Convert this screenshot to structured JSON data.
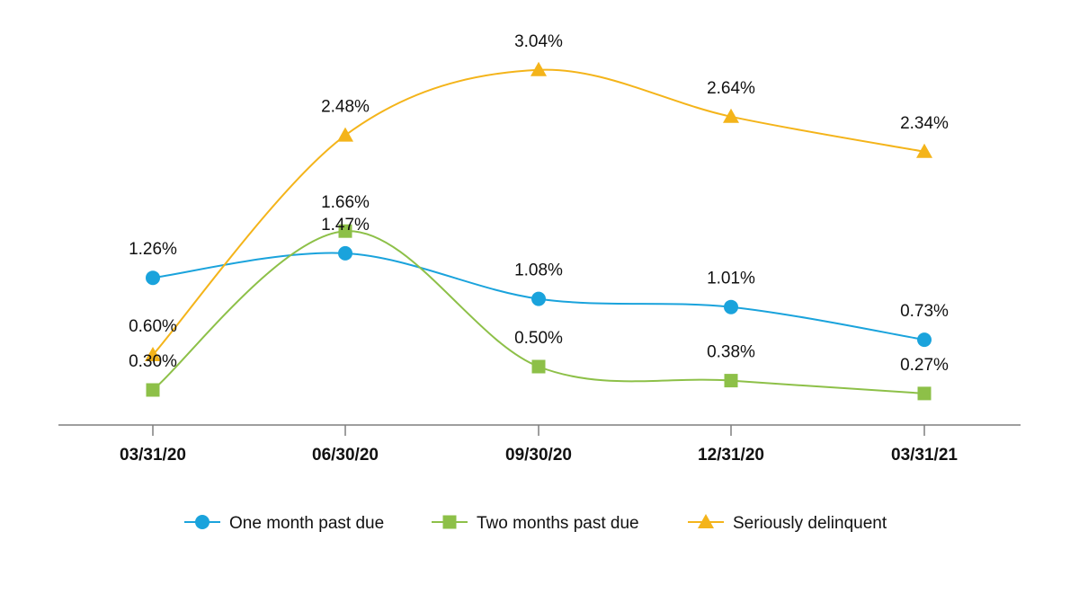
{
  "chart_data": {
    "type": "line",
    "categories": [
      "03/31/20",
      "06/30/20",
      "09/30/20",
      "12/31/20",
      "03/31/21"
    ],
    "ylim": [
      0,
      3.4
    ],
    "grid": false,
    "legend_position": "bottom",
    "series": [
      {
        "name": "One month past due",
        "marker": "circle",
        "color": "#1aa3dc",
        "values": [
          1.26,
          1.47,
          1.08,
          1.01,
          0.73
        ],
        "labels": [
          "1.26%",
          "1.47%",
          "1.08%",
          "1.01%",
          "0.73%"
        ]
      },
      {
        "name": "Two months past due",
        "marker": "square",
        "color": "#8dc048",
        "values": [
          0.3,
          1.66,
          0.5,
          0.38,
          0.27
        ],
        "labels": [
          "0.30%",
          "1.66%",
          "0.50%",
          "0.38%",
          "0.27%"
        ]
      },
      {
        "name": "Seriously delinquent",
        "marker": "triangle",
        "color": "#f4b41a",
        "values": [
          0.6,
          2.48,
          3.04,
          2.64,
          2.34
        ],
        "labels": [
          "0.60%",
          "2.48%",
          "3.04%",
          "2.64%",
          "2.34%"
        ]
      }
    ]
  }
}
